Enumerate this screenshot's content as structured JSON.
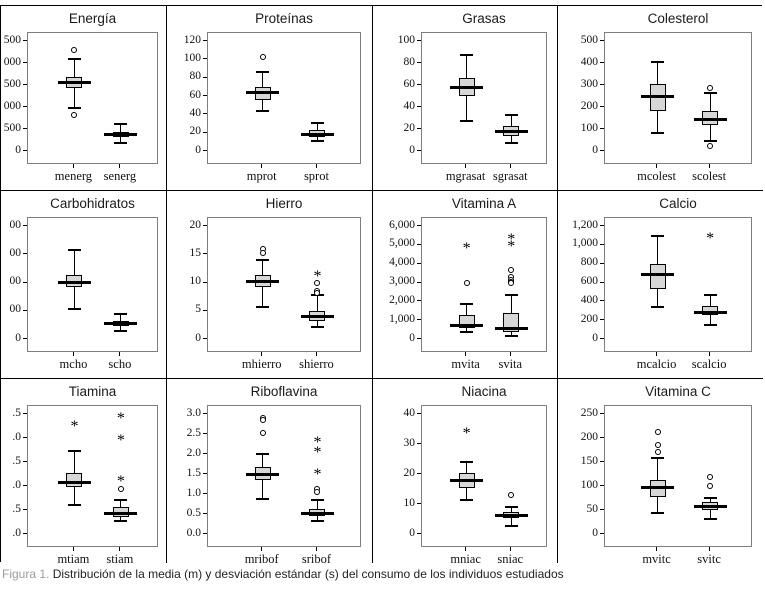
{
  "caption": {
    "label": "Figura 1.",
    "text": " Distribución de la media (m) y desviación estándar (s) del consumo de los individuos estudiados"
  },
  "chart_data": {
    "type": "box",
    "layout": "3 rows x 4 columns of SPSS-style boxplot panels, two boxplots per panel (mean m and standard deviation s per nutrient)",
    "figures": [
      {
        "title": "Energía",
        "ymin": 0,
        "ymax": 2500,
        "yticks": [
          {
            "label": "500",
            "value": 2500
          },
          {
            "label": "000",
            "value": 2000
          },
          {
            "label": "500",
            "value": 1500
          },
          {
            "label": "000",
            "value": 1000
          },
          {
            "label": "500",
            "value": 500
          },
          {
            "label": "0",
            "value": 0
          }
        ],
        "boxes": [
          {
            "label": "menerg",
            "median": 1555,
            "q1": 1440,
            "q3": 1680,
            "lo": 980,
            "hi": 2090,
            "outliers": [
              {
                "value": 2290,
                "type": "circle"
              },
              {
                "value": 820,
                "type": "circle"
              }
            ]
          },
          {
            "label": "senerg",
            "median": 370,
            "q1": 310,
            "q3": 430,
            "lo": 185,
            "hi": 620,
            "outliers": []
          }
        ]
      },
      {
        "title": "Proteínas",
        "ymin": 0,
        "ymax": 120,
        "yticks": [
          {
            "label": "120",
            "value": 120
          },
          {
            "label": "100",
            "value": 100
          },
          {
            "label": "80",
            "value": 80
          },
          {
            "label": "60",
            "value": 60
          },
          {
            "label": "40",
            "value": 40
          },
          {
            "label": "20",
            "value": 20
          },
          {
            "label": "0",
            "value": 0
          }
        ],
        "boxes": [
          {
            "label": "mprot",
            "median": 64,
            "q1": 56,
            "q3": 70,
            "lo": 44,
            "hi": 86,
            "outliers": [
              {
                "value": 103,
                "type": "circle"
              }
            ]
          },
          {
            "label": "sprot",
            "median": 18,
            "q1": 15,
            "q3": 23,
            "lo": 11,
            "hi": 31,
            "outliers": []
          }
        ]
      },
      {
        "title": "Grasas",
        "ymin": 0,
        "ymax": 100,
        "yticks": [
          {
            "label": "100",
            "value": 100
          },
          {
            "label": "80",
            "value": 80
          },
          {
            "label": "60",
            "value": 60
          },
          {
            "label": "40",
            "value": 40
          },
          {
            "label": "20",
            "value": 20
          },
          {
            "label": "0",
            "value": 0
          }
        ],
        "boxes": [
          {
            "label": "mgrasat",
            "median": 58,
            "q1": 50,
            "q3": 66,
            "lo": 27,
            "hi": 87,
            "outliers": []
          },
          {
            "label": "sgrasat",
            "median": 18,
            "q1": 14,
            "q3": 23,
            "lo": 7,
            "hi": 33,
            "outliers": []
          }
        ]
      },
      {
        "title": "Colesterol",
        "ymin": 0,
        "ymax": 500,
        "yticks": [
          {
            "label": "500",
            "value": 500
          },
          {
            "label": "400",
            "value": 400
          },
          {
            "label": "300",
            "value": 300
          },
          {
            "label": "200",
            "value": 200
          },
          {
            "label": "100",
            "value": 100
          },
          {
            "label": "0",
            "value": 0
          }
        ],
        "boxes": [
          {
            "label": "mcolest",
            "median": 247,
            "q1": 182,
            "q3": 305,
            "lo": 80,
            "hi": 403,
            "outliers": []
          },
          {
            "label": "scolest",
            "median": 145,
            "q1": 118,
            "q3": 180,
            "lo": 45,
            "hi": 262,
            "outliers": [
              {
                "value": 288,
                "type": "circle"
              },
              {
                "value": 22,
                "type": "circle"
              }
            ]
          }
        ]
      },
      {
        "title": "Carbohidratos",
        "ymin": 0,
        "ymax": 400,
        "yticks": [
          {
            "label": "00",
            "value": 400
          },
          {
            "label": "00",
            "value": 300
          },
          {
            "label": "00",
            "value": 200
          },
          {
            "label": "00",
            "value": 100
          },
          {
            "label": "0",
            "value": 0
          }
        ],
        "boxes": [
          {
            "label": "mcho",
            "median": 200,
            "q1": 183,
            "q3": 228,
            "lo": 105,
            "hi": 315,
            "outliers": []
          },
          {
            "label": "scho",
            "median": 55,
            "q1": 45,
            "q3": 65,
            "lo": 28,
            "hi": 90,
            "outliers": []
          }
        ]
      },
      {
        "title": "Hierro",
        "ymin": 0,
        "ymax": 20,
        "yticks": [
          {
            "label": "20",
            "value": 20
          },
          {
            "label": "15",
            "value": 15
          },
          {
            "label": "10",
            "value": 10
          },
          {
            "label": "5",
            "value": 5
          },
          {
            "label": "0",
            "value": 0
          }
        ],
        "boxes": [
          {
            "label": "mhierro",
            "median": 10.15,
            "q1": 9.2,
            "q3": 11.3,
            "lo": 5.6,
            "hi": 13.9,
            "outliers": [
              {
                "value": 15.9,
                "type": "circle"
              },
              {
                "value": 15.3,
                "type": "circle"
              }
            ]
          },
          {
            "label": "shierro",
            "median": 4,
            "q1": 3.2,
            "q3": 4.9,
            "lo": 2.2,
            "hi": 7.8,
            "outliers": [
              {
                "value": 11.5,
                "type": "star"
              },
              {
                "value": 10,
                "type": "circle"
              },
              {
                "value": 8.45,
                "type": "circle"
              },
              {
                "value": 8.1,
                "type": "circle"
              }
            ]
          }
        ]
      },
      {
        "title": "Vitamina A",
        "ymin": 0,
        "ymax": 6000,
        "yticks": [
          {
            "label": "6,000",
            "value": 6000
          },
          {
            "label": "5,000",
            "value": 5000
          },
          {
            "label": "4,000",
            "value": 4000
          },
          {
            "label": "3,000",
            "value": 3000
          },
          {
            "label": "2,000",
            "value": 2000
          },
          {
            "label": "1,000",
            "value": 1000
          },
          {
            "label": "0",
            "value": 0
          }
        ],
        "boxes": [
          {
            "label": "mvita",
            "median": 740,
            "q1": 600,
            "q3": 1250,
            "lo": 350,
            "hi": 1870,
            "outliers": [
              {
                "value": 4950,
                "type": "star"
              },
              {
                "value": 2950,
                "type": "circle"
              }
            ]
          },
          {
            "label": "svita",
            "median": 540,
            "q1": 380,
            "q3": 1380,
            "lo": 170,
            "hi": 2350,
            "outliers": [
              {
                "value": 5400,
                "type": "star"
              },
              {
                "value": 5050,
                "type": "star"
              },
              {
                "value": 3650,
                "type": "circle"
              },
              {
                "value": 3300,
                "type": "circle"
              },
              {
                "value": 3150,
                "type": "circle"
              },
              {
                "value": 3020,
                "type": "circle"
              },
              {
                "value": 2950,
                "type": "circle"
              }
            ]
          }
        ]
      },
      {
        "title": "Calcio",
        "ymin": 0,
        "ymax": 1200,
        "yticks": [
          {
            "label": "1,200",
            "value": 1200
          },
          {
            "label": "1,000",
            "value": 1000
          },
          {
            "label": "800",
            "value": 800
          },
          {
            "label": "600",
            "value": 600
          },
          {
            "label": "400",
            "value": 400
          },
          {
            "label": "200",
            "value": 200
          },
          {
            "label": "0",
            "value": 0
          }
        ],
        "boxes": [
          {
            "label": "mcalcio",
            "median": 690,
            "q1": 530,
            "q3": 800,
            "lo": 335,
            "hi": 1090,
            "outliers": []
          },
          {
            "label": "scalcio",
            "median": 285,
            "q1": 250,
            "q3": 355,
            "lo": 145,
            "hi": 470,
            "outliers": [
              {
                "value": 1090,
                "type": "star"
              }
            ]
          }
        ]
      },
      {
        "title": "Tiamina",
        "ymin": 0,
        "ymax": 2.5,
        "yticks": [
          {
            "label": ".5",
            "value": 2.5
          },
          {
            "label": ".0",
            "value": 2.0
          },
          {
            "label": ".5",
            "value": 1.5
          },
          {
            "label": ".0",
            "value": 1.0
          },
          {
            "label": ".5",
            "value": 0.5
          },
          {
            "label": ".0",
            "value": 0
          }
        ],
        "boxes": [
          {
            "label": "mtiam",
            "median": 1.08,
            "q1": 0.97,
            "q3": 1.27,
            "lo": 0.6,
            "hi": 1.72,
            "outliers": [
              {
                "value": 2.3,
                "type": "star"
              }
            ]
          },
          {
            "label": "stiam",
            "median": 0.42,
            "q1": 0.36,
            "q3": 0.56,
            "lo": 0.27,
            "hi": 0.7,
            "outliers": [
              {
                "value": 2.45,
                "type": "star"
              },
              {
                "value": 2.0,
                "type": "star"
              },
              {
                "value": 1.15,
                "type": "star"
              },
              {
                "value": 0.93,
                "type": "circle"
              }
            ]
          }
        ]
      },
      {
        "title": "Riboflavina",
        "ymin": 0,
        "ymax": 3.0,
        "yticks": [
          {
            "label": "3.0",
            "value": 3.0
          },
          {
            "label": "2.5",
            "value": 2.5
          },
          {
            "label": "2.0",
            "value": 2.0
          },
          {
            "label": "1.5",
            "value": 1.5
          },
          {
            "label": "1.0",
            "value": 1.0
          },
          {
            "label": "0.5",
            "value": 0.5
          },
          {
            "label": "0.0",
            "value": 0
          }
        ],
        "boxes": [
          {
            "label": "mribof",
            "median": 1.5,
            "q1": 1.35,
            "q3": 1.68,
            "lo": 0.87,
            "hi": 2.0,
            "outliers": [
              {
                "value": 2.9,
                "type": "circle"
              },
              {
                "value": 2.84,
                "type": "circle"
              },
              {
                "value": 2.52,
                "type": "circle"
              }
            ]
          },
          {
            "label": "sribof",
            "median": 0.52,
            "q1": 0.44,
            "q3": 0.62,
            "lo": 0.33,
            "hi": 0.85,
            "outliers": [
              {
                "value": 2.35,
                "type": "star"
              },
              {
                "value": 2.1,
                "type": "star"
              },
              {
                "value": 1.55,
                "type": "star"
              },
              {
                "value": 1.12,
                "type": "circle"
              },
              {
                "value": 1.05,
                "type": "circle"
              }
            ]
          }
        ]
      },
      {
        "title": "Niacina",
        "ymin": 0,
        "ymax": 40,
        "yticks": [
          {
            "label": "40",
            "value": 40
          },
          {
            "label": "30",
            "value": 30
          },
          {
            "label": "20",
            "value": 20
          },
          {
            "label": "10",
            "value": 10
          },
          {
            "label": "0",
            "value": 0
          }
        ],
        "boxes": [
          {
            "label": "mniac",
            "median": 18,
            "q1": 15.5,
            "q3": 20.5,
            "lo": 11.5,
            "hi": 24,
            "outliers": [
              {
                "value": 34.5,
                "type": "star"
              }
            ]
          },
          {
            "label": "sniac",
            "median": 6.2,
            "q1": 5.3,
            "q3": 7.5,
            "lo": 2.8,
            "hi": 9,
            "outliers": [
              {
                "value": 13,
                "type": "circle"
              }
            ]
          }
        ]
      },
      {
        "title": "Vitamina C",
        "ymin": 0,
        "ymax": 250,
        "yticks": [
          {
            "label": "250",
            "value": 250
          },
          {
            "label": "200",
            "value": 200
          },
          {
            "label": "150",
            "value": 150
          },
          {
            "label": "100",
            "value": 100
          },
          {
            "label": "50",
            "value": 50
          },
          {
            "label": "0",
            "value": 0
          }
        ],
        "boxes": [
          {
            "label": "mvitc",
            "median": 96,
            "q1": 78,
            "q3": 113,
            "lo": 43,
            "hi": 158,
            "outliers": [
              {
                "value": 213,
                "type": "circle"
              },
              {
                "value": 185,
                "type": "circle"
              },
              {
                "value": 170,
                "type": "circle"
              }
            ]
          },
          {
            "label": "svitc",
            "median": 58,
            "q1": 50,
            "q3": 67,
            "lo": 31,
            "hi": 75,
            "outliers": [
              {
                "value": 119,
                "type": "circle"
              },
              {
                "value": 99,
                "type": "circle"
              }
            ]
          }
        ]
      }
    ]
  }
}
